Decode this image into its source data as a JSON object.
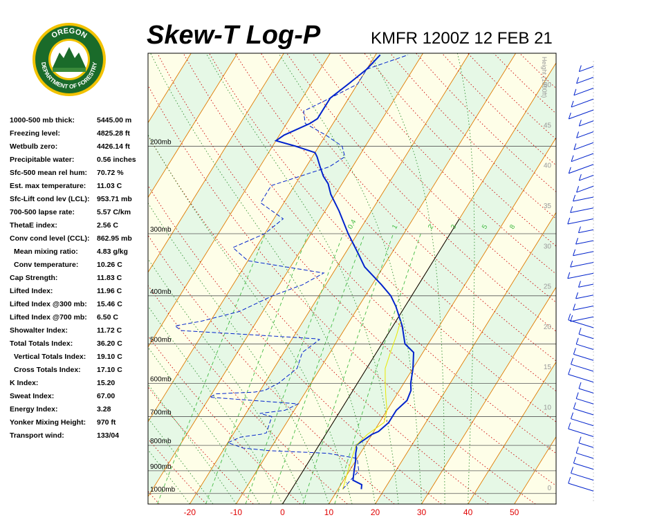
{
  "header": {
    "title": "Skew-T Log-P",
    "station_time": "KMFR 1200Z 12 FEB 21"
  },
  "logo": {
    "top_text": "OREGON",
    "bottom_text": "DEPARTMENT OF FORESTRY",
    "colors": {
      "ring": "#f2c200",
      "body": "#1a6b2a",
      "text": "#ffffff"
    }
  },
  "indices": [
    {
      "label": "1000-500 mb thick:",
      "value": "5445.00 m",
      "indent": false
    },
    {
      "label": "Freezing level:",
      "value": "4825.28 ft",
      "indent": false
    },
    {
      "label": "Wetbulb zero:",
      "value": "4426.14 ft",
      "indent": false
    },
    {
      "label": "Precipitable water:",
      "value": "0.56 inches",
      "indent": false
    },
    {
      "label": "Sfc-500 mean rel hum:",
      "value": "70.72 %",
      "indent": false
    },
    {
      "label": "Est. max temperature:",
      "value": "11.03 C",
      "indent": false
    },
    {
      "label": "Sfc-Lift cond lev (LCL):",
      "value": "953.71 mb",
      "indent": false
    },
    {
      "label": "700-500 lapse rate:",
      "value": "5.57 C/km",
      "indent": false
    },
    {
      "label": "ThetaE index:",
      "value": "2.56 C",
      "indent": false
    },
    {
      "label": "Conv cond level (CCL):",
      "value": "862.95 mb",
      "indent": false
    },
    {
      "label": "Mean mixing ratio:",
      "value": "4.83 g/kg",
      "indent": true
    },
    {
      "label": "Conv temperature:",
      "value": "10.26 C",
      "indent": true
    },
    {
      "label": "Cap Strength:",
      "value": "11.83 C",
      "indent": false
    },
    {
      "label": "Lifted Index:",
      "value": "11.96 C",
      "indent": false
    },
    {
      "label": "Lifted Index @300 mb:",
      "value": "15.46 C",
      "indent": false
    },
    {
      "label": "Lifted Index @700 mb:",
      "value": "6.50 C",
      "indent": false
    },
    {
      "label": "Showalter Index:",
      "value": "11.72 C",
      "indent": false
    },
    {
      "label": "Total Totals Index:",
      "value": "36.20 C",
      "indent": false
    },
    {
      "label": "Vertical Totals Index:",
      "value": "19.10 C",
      "indent": true
    },
    {
      "label": "Cross Totals Index:",
      "value": "17.10 C",
      "indent": true
    },
    {
      "label": "K Index:",
      "value": "15.20",
      "indent": false
    },
    {
      "label": "Sweat Index:",
      "value": "67.00",
      "indent": false
    },
    {
      "label": "Energy Index:",
      "value": "3.28",
      "indent": false
    },
    {
      "label": "Yonker Mixing Height:",
      "value": "970 ft",
      "indent": false
    },
    {
      "label": "Transport wind:",
      "value": "133/04",
      "indent": false
    }
  ],
  "chart_data": {
    "type": "line",
    "x_ticks": [
      -20,
      -10,
      0,
      10,
      20,
      30,
      40,
      50
    ],
    "xlim": [
      -29,
      59
    ],
    "pressure_levels": [
      {
        "p": 200,
        "label": "200mb"
      },
      {
        "p": 300,
        "label": "300mb"
      },
      {
        "p": 400,
        "label": "400mb"
      },
      {
        "p": 500,
        "label": "500mb"
      },
      {
        "p": 600,
        "label": "600mb"
      },
      {
        "p": 700,
        "label": "700mb"
      },
      {
        "p": 800,
        "label": "800mb"
      },
      {
        "p": 900,
        "label": "900mb"
      },
      {
        "p": 1000,
        "label": "1000mb"
      }
    ],
    "plim": [
      1050,
      130
    ],
    "height_axis": {
      "label": "Height (1000ft)",
      "ticks": [
        0,
        5,
        10,
        15,
        20,
        25,
        30,
        35,
        40,
        45,
        50
      ]
    },
    "mixing_ratio_labels": [
      "0.4",
      "1",
      "2",
      "3",
      "5",
      "8"
    ],
    "series": [
      {
        "role": "temperature",
        "color": "#0022cc",
        "points": [
          [
            15,
            980
          ],
          [
            14.5,
            960
          ],
          [
            12,
            940
          ],
          [
            11,
            900
          ],
          [
            10,
            860
          ],
          [
            9,
            830
          ],
          [
            8.5,
            810
          ],
          [
            8,
            800
          ],
          [
            9,
            780
          ],
          [
            10,
            760
          ],
          [
            11,
            750
          ],
          [
            12,
            720
          ],
          [
            12,
            700
          ],
          [
            12,
            680
          ],
          [
            13,
            650
          ],
          [
            12.5,
            620
          ],
          [
            11.5,
            600
          ],
          [
            10,
            560
          ],
          [
            8,
            520
          ],
          [
            5,
            500
          ],
          [
            2,
            460
          ],
          [
            -2,
            420
          ],
          [
            -4.5,
            400
          ],
          [
            -8,
            380
          ],
          [
            -14,
            350
          ],
          [
            -17,
            330
          ],
          [
            -22,
            300
          ],
          [
            -27,
            270
          ],
          [
            -31,
            250
          ],
          [
            -33,
            238
          ],
          [
            -35,
            230
          ],
          [
            -37,
            220
          ],
          [
            -39,
            210
          ],
          [
            -40,
            206
          ],
          [
            -45,
            200
          ],
          [
            -50,
            195
          ],
          [
            -49,
            190
          ],
          [
            -47,
            185
          ],
          [
            -45,
            180
          ],
          [
            -44,
            176
          ],
          [
            -44,
            170
          ],
          [
            -44,
            160
          ],
          [
            -42,
            150
          ],
          [
            -40,
            140
          ],
          [
            -39,
            131
          ]
        ]
      },
      {
        "role": "dewpoint",
        "color": "#0022cc",
        "dashed": true,
        "points": [
          [
            11,
            980
          ],
          [
            12,
            900
          ],
          [
            10,
            850
          ],
          [
            3,
            830
          ],
          [
            -10,
            820
          ],
          [
            -16,
            810
          ],
          [
            -20,
            790
          ],
          [
            -18,
            770
          ],
          [
            -14,
            760
          ],
          [
            -13,
            755
          ],
          [
            -14,
            700
          ],
          [
            -17,
            690
          ],
          [
            -12,
            680
          ],
          [
            -10,
            660
          ],
          [
            -30,
            640
          ],
          [
            -29,
            630
          ],
          [
            -21,
            625
          ],
          [
            -19,
            620
          ],
          [
            -17,
            600
          ],
          [
            -15,
            560
          ],
          [
            -16,
            520
          ],
          [
            -14,
            490
          ],
          [
            -15,
            488
          ],
          [
            -28,
            480
          ],
          [
            -45,
            470
          ],
          [
            -47,
            460
          ],
          [
            -42,
            450
          ],
          [
            -35,
            430
          ],
          [
            -30,
            400
          ],
          [
            -25,
            380
          ],
          [
            -22,
            360
          ],
          [
            -40,
            340
          ],
          [
            -45,
            320
          ],
          [
            -40,
            300
          ],
          [
            -38,
            280
          ],
          [
            -45,
            260
          ],
          [
            -45,
            240
          ],
          [
            -35,
            220
          ],
          [
            -33,
            210
          ],
          [
            -35,
            200
          ],
          [
            -40,
            190
          ],
          [
            -46,
            180
          ],
          [
            -48,
            170
          ],
          [
            -44,
            160
          ],
          [
            -40,
            150
          ],
          [
            -40,
            140
          ],
          [
            -33,
            131
          ]
        ]
      },
      {
        "role": "parcel",
        "color": "#e8e800",
        "points": [
          [
            11,
            980
          ],
          [
            10,
            920
          ],
          [
            9,
            860
          ],
          [
            8,
            800
          ],
          [
            9,
            760
          ],
          [
            11,
            720
          ],
          [
            10,
            680
          ],
          [
            8,
            640
          ],
          [
            6,
            600
          ],
          [
            4,
            560
          ],
          [
            3,
            520
          ],
          [
            2,
            480
          ],
          [
            1,
            450
          ]
        ]
      }
    ],
    "wind_barbs_column": {
      "color": "#0022cc",
      "count": 40
    }
  }
}
